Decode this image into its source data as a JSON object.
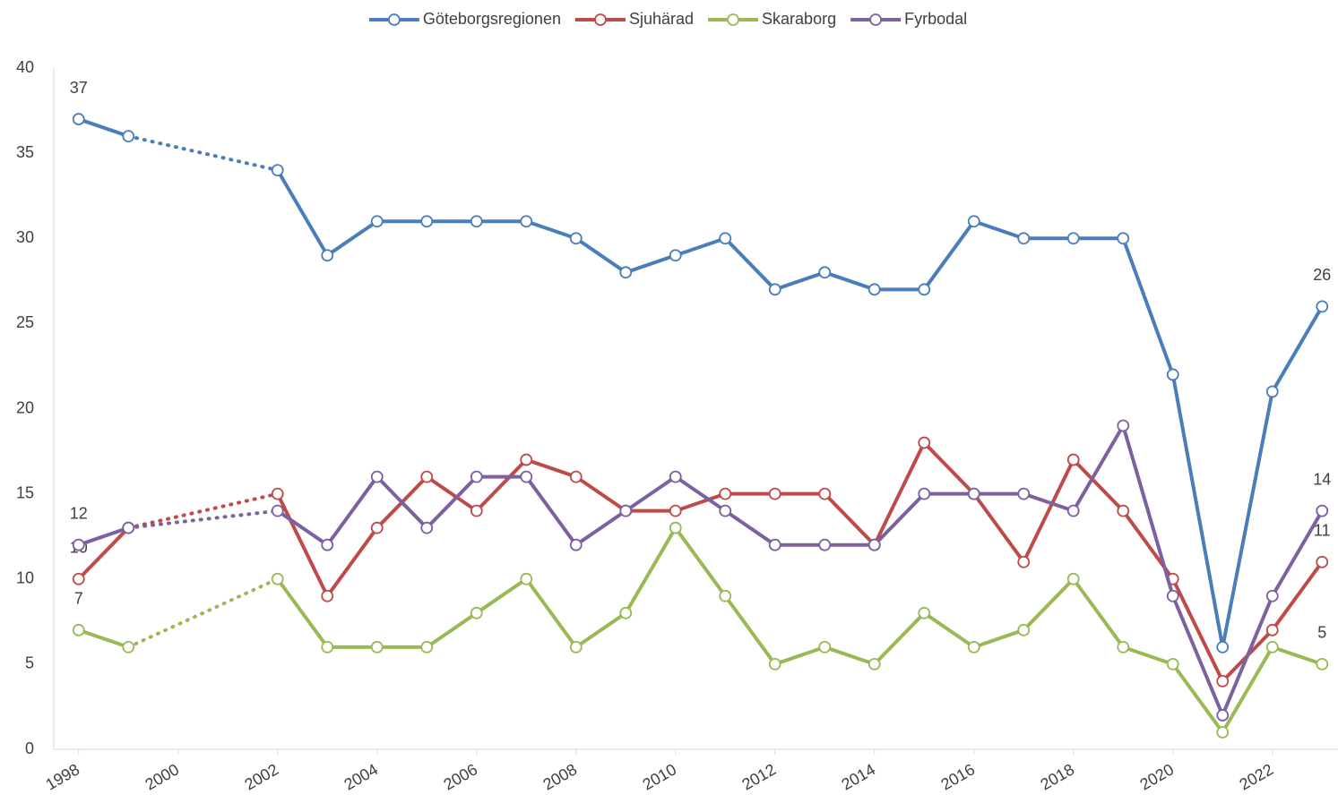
{
  "chart_data": {
    "type": "line",
    "x": [
      1998,
      1999,
      2000,
      2001,
      2002,
      2003,
      2004,
      2005,
      2006,
      2007,
      2008,
      2009,
      2010,
      2011,
      2012,
      2013,
      2014,
      2015,
      2016,
      2017,
      2018,
      2019,
      2020,
      2021,
      2022,
      2023
    ],
    "xlim": [
      1997.5,
      2023.5
    ],
    "xticks": [
      1998,
      2000,
      2002,
      2004,
      2006,
      2008,
      2010,
      2012,
      2014,
      2016,
      2018,
      2020,
      2022
    ],
    "ylim": [
      0,
      40
    ],
    "yticks": [
      0,
      5,
      10,
      15,
      20,
      25,
      30,
      35,
      40
    ],
    "grid": false,
    "legend": "top",
    "series": [
      {
        "name": "Göteborgsregionen",
        "color": "#4a7ebb",
        "values": [
          37,
          36,
          null,
          null,
          34,
          29,
          31,
          31,
          31,
          31,
          30,
          28,
          29,
          30,
          27,
          28,
          27,
          27,
          31,
          30,
          30,
          30,
          22,
          6,
          21,
          26
        ]
      },
      {
        "name": "Sjuhärad",
        "color": "#be4b48",
        "values": [
          10,
          13,
          null,
          null,
          15,
          9,
          13,
          16,
          14,
          17,
          16,
          14,
          14,
          15,
          15,
          15,
          12,
          18,
          15,
          11,
          17,
          14,
          10,
          4,
          7,
          11
        ]
      },
      {
        "name": "Skaraborg",
        "color": "#98b954",
        "values": [
          7,
          6,
          null,
          null,
          10,
          6,
          6,
          6,
          8,
          10,
          6,
          8,
          13,
          9,
          5,
          6,
          5,
          8,
          6,
          7,
          10,
          6,
          5,
          1,
          6,
          5
        ]
      },
      {
        "name": "Fyrbodal",
        "color": "#7d60a0",
        "values": [
          12,
          13,
          null,
          null,
          14,
          12,
          16,
          13,
          16,
          16,
          12,
          14,
          16,
          14,
          12,
          12,
          12,
          15,
          15,
          15,
          14,
          19,
          9,
          2,
          9,
          14
        ]
      }
    ]
  }
}
